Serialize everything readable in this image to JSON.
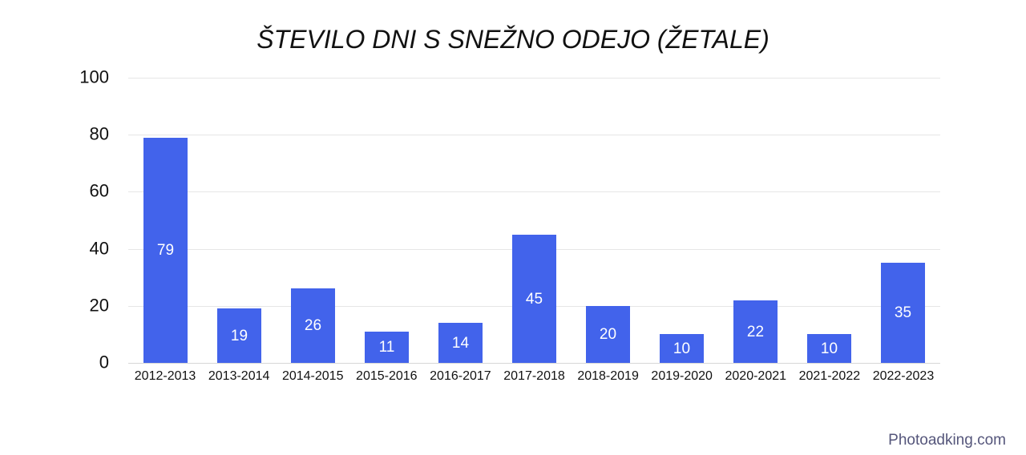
{
  "page": {
    "background_color": "#ffffff"
  },
  "title": "ŠTEVILO DNI S SNEŽNO ODEJO (ŽETALE)",
  "watermark": {
    "text": "Photoadking.com",
    "color": "#55567b"
  },
  "chart_data": {
    "type": "bar",
    "title": "ŠTEVILO DNI S SNEŽNO ODEJO (ŽETALE)",
    "categories": [
      "2012-2013",
      "2013-2014",
      "2014-2015",
      "2015-2016",
      "2016-2017",
      "2017-2018",
      "2018-2019",
      "2019-2020",
      "2020-2021",
      "2021-2022",
      "2022-2023"
    ],
    "values": [
      79,
      19,
      26,
      11,
      14,
      45,
      20,
      10,
      22,
      10,
      35
    ],
    "xlabel": "",
    "ylabel": "",
    "ylim": [
      0,
      100
    ],
    "yticks": [
      0,
      20,
      40,
      60,
      80,
      100
    ],
    "grid": true,
    "legend": false,
    "bar_color": "#4263eb",
    "bar_label_color": "#ffffff",
    "gridline_color": "#e6e6e6",
    "axis_line_color": "#d6d6d6",
    "text_color": "#111111"
  }
}
